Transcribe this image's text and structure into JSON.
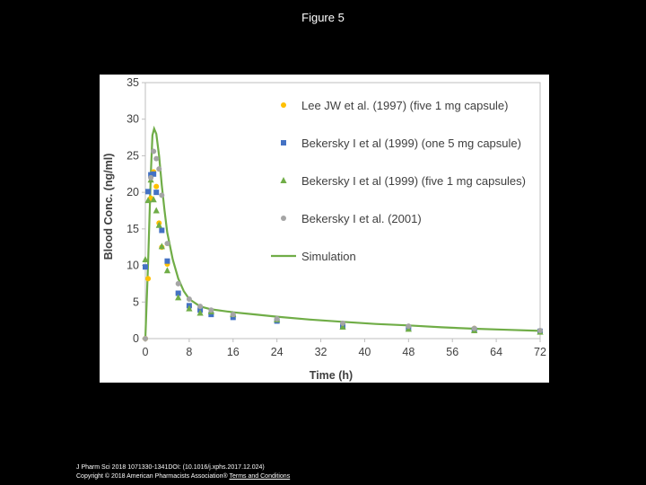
{
  "slide": {
    "title": "Figure 5",
    "citation": "J Pharm Sci 2018 1071330-1341DOI: (10.1016/j.xphs.2017.12.024)",
    "copyright": "Copyright © 2018 American Pharmacists Association®",
    "terms_link": "Terms and Conditions"
  },
  "chart_data": {
    "type": "scatter",
    "title": "",
    "xlabel": "Time (h)",
    "ylabel": "Blood Conc. (ng/ml)",
    "xlim": [
      0,
      72
    ],
    "ylim": [
      0,
      35
    ],
    "xticks": [
      0,
      8,
      16,
      24,
      32,
      40,
      48,
      56,
      64,
      72
    ],
    "yticks": [
      0,
      5,
      10,
      15,
      20,
      25,
      30,
      35
    ],
    "grid": false,
    "legend_position": "top-right",
    "series": [
      {
        "name": "Lee JW et al. (1997) (five 1 mg capsule)",
        "marker": "circle",
        "color": "#FFC000",
        "x": [
          0,
          0.5,
          1,
          1.5,
          2,
          2.5,
          3,
          4,
          6,
          8,
          10,
          12,
          16,
          24,
          36,
          48,
          60
        ],
        "y": [
          0,
          8.2,
          19.2,
          22.8,
          20.8,
          15.8,
          12.5,
          10.2,
          6.2,
          4.4,
          3.9,
          3.5,
          3.1,
          2.6,
          1.9,
          1.6,
          1.4
        ]
      },
      {
        "name": "Bekersky I et al (1999) (one 5 mg capsule)",
        "marker": "square",
        "color": "#4472C4",
        "x": [
          0,
          0.5,
          1,
          1.5,
          2,
          3,
          4,
          6,
          8,
          10,
          12,
          16,
          24,
          36,
          48,
          60,
          72
        ],
        "y": [
          9.8,
          20.1,
          22.4,
          22.5,
          20.0,
          14.8,
          10.6,
          6.2,
          4.5,
          3.9,
          3.3,
          2.9,
          2.4,
          1.7,
          1.4,
          1.2,
          1.0
        ]
      },
      {
        "name": "Bekersky I et al (1999) (five 1 mg capsules)",
        "marker": "triangle",
        "color": "#70AD47",
        "x": [
          0,
          0.5,
          1,
          1.5,
          2,
          2.5,
          3,
          4,
          6,
          8,
          10,
          12,
          16,
          24,
          36,
          48,
          60,
          72
        ],
        "y": [
          10.8,
          18.9,
          21.7,
          19.0,
          17.5,
          15.5,
          12.6,
          9.3,
          5.6,
          4.1,
          3.5,
          3.7,
          3.3,
          2.6,
          1.6,
          1.3,
          1.1,
          0.9
        ]
      },
      {
        "name": "Bekersky I et al. (2001)",
        "marker": "circle",
        "color": "#A5A5A5",
        "x": [
          0,
          1,
          1.5,
          2,
          2.5,
          3,
          4,
          6,
          8,
          10,
          12,
          16,
          24,
          36,
          48,
          60,
          72
        ],
        "y": [
          0,
          22.0,
          25.6,
          24.6,
          23.2,
          19.6,
          13.0,
          7.5,
          5.4,
          4.4,
          3.9,
          3.3,
          2.7,
          2.1,
          1.7,
          1.4,
          1.1
        ]
      },
      {
        "name": "Simulation",
        "marker": "line",
        "color": "#70AD47",
        "x": [
          0,
          0.5,
          1,
          1.3,
          1.6,
          2,
          2.5,
          3,
          3.5,
          4,
          5,
          6,
          7,
          8,
          10,
          12,
          16,
          20,
          24,
          30,
          36,
          42,
          48,
          54,
          60,
          66,
          72
        ],
        "y": [
          0,
          10.5,
          22.5,
          27.8,
          28.7,
          28.0,
          25.0,
          21.0,
          17.5,
          14.5,
          10.8,
          8.2,
          6.5,
          5.4,
          4.4,
          4.0,
          3.6,
          3.3,
          3.0,
          2.6,
          2.3,
          2.0,
          1.8,
          1.55,
          1.35,
          1.2,
          1.05
        ]
      }
    ]
  }
}
